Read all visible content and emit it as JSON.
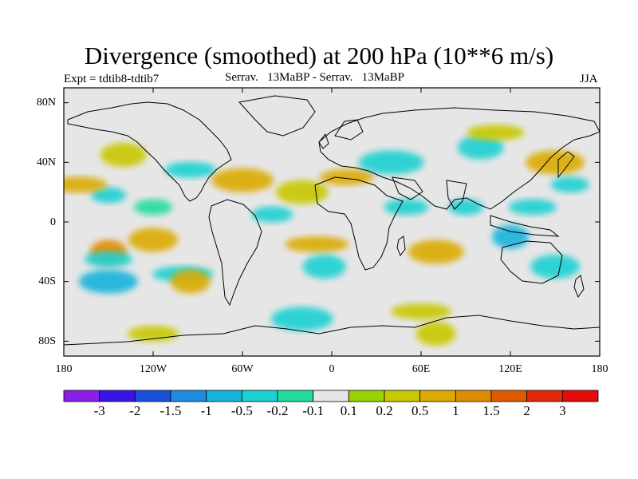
{
  "title": "Divergence (smoothed) at 200 hPa (10**6 m/s)",
  "experiment": "Expt = tdtib8-tdtib7",
  "case_label": "Serrav.   13MaBP - Serrav.   13MaBP",
  "season": "JJA",
  "chart_data": {
    "type": "heatmap",
    "title": "Divergence (smoothed) at 200 hPa (10**6 m/s)",
    "x_ticks": [
      "180",
      "120W",
      "60W",
      "0",
      "60E",
      "120E",
      "180"
    ],
    "y_ticks": [
      "80N",
      "40N",
      "0",
      "40S",
      "80S"
    ],
    "x_range": [
      -180,
      180
    ],
    "y_range": [
      -90,
      90
    ],
    "colorbar": {
      "levels": [
        "-3",
        "-2",
        "-1.5",
        "-1",
        "-0.5",
        "-0.2",
        "-0.1",
        "0.1",
        "0.2",
        "0.5",
        "1",
        "1.5",
        "2",
        "3"
      ],
      "colors": [
        "#8a1fe6",
        "#3a14e6",
        "#1a4fdc",
        "#1e8ce0",
        "#16b4dc",
        "#1ed0d2",
        "#22dca0",
        "#e6e6e6",
        "#9ad200",
        "#c8c800",
        "#dcaa00",
        "#e08c00",
        "#e05a00",
        "#e02a0a",
        "#e60a0a"
      ]
    },
    "features": [
      {
        "lon": -150,
        "lat": 18,
        "value": -0.5
      },
      {
        "lon": -140,
        "lat": 45,
        "value": 0.2
      },
      {
        "lon": -170,
        "lat": 25,
        "value": 0.5
      },
      {
        "lon": -150,
        "lat": -20,
        "value": 1
      },
      {
        "lon": -150,
        "lat": -25,
        "value": -0.5
      },
      {
        "lon": -150,
        "lat": -40,
        "value": -1
      },
      {
        "lon": -120,
        "lat": 10,
        "value": -0.2
      },
      {
        "lon": -120,
        "lat": -12,
        "value": 0.5
      },
      {
        "lon": -100,
        "lat": -35,
        "value": -0.5
      },
      {
        "lon": -95,
        "lat": -40,
        "value": 0.5
      },
      {
        "lon": -95,
        "lat": 35,
        "value": -0.5
      },
      {
        "lon": -60,
        "lat": 28,
        "value": 0.5
      },
      {
        "lon": -40,
        "lat": 5,
        "value": -0.5
      },
      {
        "lon": -20,
        "lat": 20,
        "value": 0.2
      },
      {
        "lon": -10,
        "lat": -15,
        "value": 0.5
      },
      {
        "lon": -5,
        "lat": -30,
        "value": -0.5
      },
      {
        "lon": 10,
        "lat": 30,
        "value": 0.5
      },
      {
        "lon": 40,
        "lat": 40,
        "value": -0.5
      },
      {
        "lon": 50,
        "lat": 10,
        "value": -0.5
      },
      {
        "lon": 70,
        "lat": -20,
        "value": 0.5
      },
      {
        "lon": 90,
        "lat": 10,
        "value": -0.5
      },
      {
        "lon": 100,
        "lat": 50,
        "value": -0.5
      },
      {
        "lon": 110,
        "lat": 60,
        "value": 0.2
      },
      {
        "lon": 120,
        "lat": -10,
        "value": -1
      },
      {
        "lon": 135,
        "lat": 10,
        "value": -0.5
      },
      {
        "lon": 150,
        "lat": 40,
        "value": 0.5
      },
      {
        "lon": 160,
        "lat": 25,
        "value": -0.5
      },
      {
        "lon": 150,
        "lat": -30,
        "value": -0.5
      },
      {
        "lon": 60,
        "lat": -60,
        "value": 0.2
      },
      {
        "lon": 70,
        "lat": -75,
        "value": 0.2
      },
      {
        "lon": -120,
        "lat": -75,
        "value": 0.2
      },
      {
        "lon": -20,
        "lat": -65,
        "value": -0.5
      }
    ]
  }
}
